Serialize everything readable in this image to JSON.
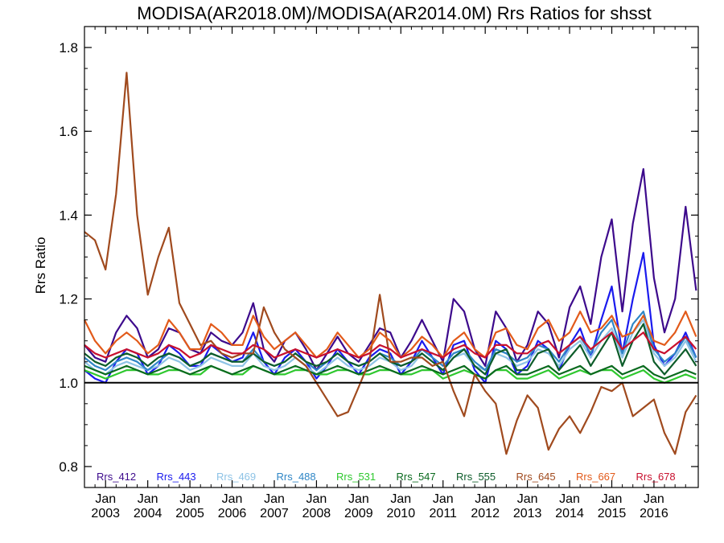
{
  "chart_data": {
    "type": "line",
    "title": "MODISA(AR2018.0M)/MODISA(AR2014.0M)  Rrs Ratios for shsst",
    "ylabel": "Rrs Ratio",
    "xlabel": "",
    "xlim": [
      2002.5,
      2017.05
    ],
    "ylim": [
      0.75,
      1.85
    ],
    "yticks": [
      0.8,
      1.0,
      1.2,
      1.4,
      1.6,
      1.8
    ],
    "ytick_labels": [
      "0.8",
      "1.0",
      "1.2",
      "1.4",
      "1.6",
      "1.8"
    ],
    "xticks": [
      {
        "x": 2003,
        "month": "Jan",
        "year": "2003"
      },
      {
        "x": 2004,
        "month": "Jan",
        "year": "2004"
      },
      {
        "x": 2005,
        "month": "Jan",
        "year": "2005"
      },
      {
        "x": 2006,
        "month": "Jan",
        "year": "2006"
      },
      {
        "x": 2007,
        "month": "Jan",
        "year": "2007"
      },
      {
        "x": 2008,
        "month": "Jan",
        "year": "2008"
      },
      {
        "x": 2009,
        "month": "Jan",
        "year": "2009"
      },
      {
        "x": 2010,
        "month": "Jan",
        "year": "2010"
      },
      {
        "x": 2011,
        "month": "Jan",
        "year": "2011"
      },
      {
        "x": 2012,
        "month": "Jan",
        "year": "2012"
      },
      {
        "x": 2013,
        "month": "Jan",
        "year": "2013"
      },
      {
        "x": 2014,
        "month": "Jan",
        "year": "2014"
      },
      {
        "x": 2015,
        "month": "Jan",
        "year": "2015"
      },
      {
        "x": 2016,
        "month": "Jan",
        "year": "2016"
      }
    ],
    "reference_line": 1.0,
    "legend_position": "bottom",
    "x": [
      2002.5,
      2002.75,
      2003.0,
      2003.25,
      2003.5,
      2003.75,
      2004.0,
      2004.25,
      2004.5,
      2004.75,
      2005.0,
      2005.25,
      2005.5,
      2005.75,
      2006.0,
      2006.25,
      2006.5,
      2006.75,
      2007.0,
      2007.25,
      2007.5,
      2007.75,
      2008.0,
      2008.25,
      2008.5,
      2008.75,
      2009.0,
      2009.25,
      2009.5,
      2009.75,
      2010.0,
      2010.25,
      2010.5,
      2010.75,
      2011.0,
      2011.25,
      2011.5,
      2011.75,
      2012.0,
      2012.25,
      2012.5,
      2012.75,
      2013.0,
      2013.25,
      2013.5,
      2013.75,
      2014.0,
      2014.25,
      2014.5,
      2014.75,
      2015.0,
      2015.25,
      2015.5,
      2015.75,
      2016.0,
      2016.25,
      2016.5,
      2016.75,
      2017.0
    ],
    "series": [
      {
        "name": "Rrs_412",
        "color": "#3d0a8c",
        "values": [
          1.09,
          1.06,
          1.05,
          1.12,
          1.16,
          1.13,
          1.06,
          1.08,
          1.13,
          1.12,
          1.08,
          1.07,
          1.12,
          1.1,
          1.09,
          1.12,
          1.19,
          1.08,
          1.05,
          1.1,
          1.12,
          1.08,
          1.03,
          1.07,
          1.11,
          1.07,
          1.05,
          1.09,
          1.13,
          1.12,
          1.06,
          1.1,
          1.15,
          1.1,
          1.05,
          1.2,
          1.17,
          1.08,
          1.04,
          1.17,
          1.13,
          1.05,
          1.09,
          1.17,
          1.14,
          1.06,
          1.18,
          1.23,
          1.14,
          1.3,
          1.39,
          1.17,
          1.38,
          1.51,
          1.25,
          1.12,
          1.2,
          1.42,
          1.22
        ]
      },
      {
        "name": "Rrs_443",
        "color": "#1a1aee",
        "values": [
          1.03,
          1.01,
          1.0,
          1.05,
          1.08,
          1.07,
          1.02,
          1.04,
          1.09,
          1.07,
          1.04,
          1.04,
          1.09,
          1.07,
          1.05,
          1.06,
          1.12,
          1.05,
          1.02,
          1.06,
          1.08,
          1.05,
          1.01,
          1.04,
          1.08,
          1.05,
          1.02,
          1.06,
          1.08,
          1.07,
          1.02,
          1.05,
          1.1,
          1.06,
          1.02,
          1.09,
          1.1,
          1.03,
          1.0,
          1.1,
          1.08,
          1.02,
          1.04,
          1.1,
          1.08,
          1.03,
          1.09,
          1.13,
          1.06,
          1.15,
          1.23,
          1.07,
          1.2,
          1.31,
          1.09,
          1.04,
          1.07,
          1.12,
          1.06
        ]
      },
      {
        "name": "Rrs_469",
        "color": "#8ec3e6",
        "values": [
          1.05,
          1.03,
          1.02,
          1.04,
          1.05,
          1.04,
          1.03,
          1.04,
          1.06,
          1.05,
          1.03,
          1.04,
          1.06,
          1.05,
          1.04,
          1.04,
          1.07,
          1.04,
          1.03,
          1.04,
          1.06,
          1.04,
          1.02,
          1.04,
          1.06,
          1.04,
          1.03,
          1.04,
          1.06,
          1.05,
          1.03,
          1.04,
          1.07,
          1.05,
          1.03,
          1.06,
          1.07,
          1.04,
          1.03,
          1.07,
          1.06,
          1.04,
          1.05,
          1.08,
          1.07,
          1.04,
          1.08,
          1.1,
          1.06,
          1.1,
          1.13,
          1.06,
          1.12,
          1.15,
          1.07,
          1.04,
          1.06,
          1.1,
          1.05
        ]
      },
      {
        "name": "Rrs_488",
        "color": "#2f86c6",
        "values": [
          1.06,
          1.04,
          1.03,
          1.05,
          1.06,
          1.05,
          1.03,
          1.05,
          1.07,
          1.06,
          1.04,
          1.05,
          1.07,
          1.06,
          1.05,
          1.05,
          1.08,
          1.05,
          1.04,
          1.05,
          1.07,
          1.05,
          1.03,
          1.05,
          1.07,
          1.05,
          1.04,
          1.05,
          1.07,
          1.06,
          1.04,
          1.05,
          1.08,
          1.06,
          1.04,
          1.07,
          1.08,
          1.05,
          1.03,
          1.08,
          1.07,
          1.05,
          1.06,
          1.09,
          1.08,
          1.05,
          1.09,
          1.11,
          1.07,
          1.12,
          1.15,
          1.07,
          1.14,
          1.17,
          1.08,
          1.05,
          1.07,
          1.11,
          1.06
        ]
      },
      {
        "name": "Rrs_531",
        "color": "#2ec82e",
        "values": [
          1.03,
          1.02,
          1.01,
          1.02,
          1.03,
          1.03,
          1.02,
          1.02,
          1.03,
          1.03,
          1.02,
          1.02,
          1.04,
          1.03,
          1.02,
          1.02,
          1.04,
          1.03,
          1.02,
          1.02,
          1.03,
          1.03,
          1.02,
          1.02,
          1.03,
          1.03,
          1.02,
          1.02,
          1.03,
          1.03,
          1.02,
          1.02,
          1.03,
          1.03,
          1.01,
          1.02,
          1.03,
          1.02,
          1.01,
          1.03,
          1.03,
          1.01,
          1.01,
          1.02,
          1.03,
          1.01,
          1.02,
          1.03,
          1.02,
          1.03,
          1.03,
          1.01,
          1.02,
          1.03,
          1.01,
          1.0,
          1.01,
          1.02,
          1.01
        ]
      },
      {
        "name": "Rrs_547",
        "color": "#0a6a1e",
        "values": [
          1.04,
          1.03,
          1.02,
          1.03,
          1.04,
          1.03,
          1.02,
          1.03,
          1.04,
          1.03,
          1.02,
          1.03,
          1.04,
          1.03,
          1.02,
          1.03,
          1.04,
          1.03,
          1.02,
          1.03,
          1.04,
          1.03,
          1.02,
          1.03,
          1.04,
          1.03,
          1.02,
          1.03,
          1.04,
          1.03,
          1.02,
          1.03,
          1.04,
          1.03,
          1.02,
          1.03,
          1.04,
          1.02,
          1.01,
          1.03,
          1.04,
          1.02,
          1.02,
          1.03,
          1.04,
          1.02,
          1.03,
          1.04,
          1.02,
          1.03,
          1.04,
          1.02,
          1.03,
          1.04,
          1.02,
          1.01,
          1.02,
          1.03,
          1.02
        ]
      },
      {
        "name": "Rrs_555",
        "color": "#0d5c2a",
        "values": [
          1.07,
          1.05,
          1.04,
          1.06,
          1.07,
          1.06,
          1.04,
          1.06,
          1.07,
          1.06,
          1.04,
          1.05,
          1.07,
          1.06,
          1.05,
          1.05,
          1.07,
          1.05,
          1.04,
          1.05,
          1.07,
          1.05,
          1.04,
          1.05,
          1.07,
          1.05,
          1.04,
          1.05,
          1.07,
          1.05,
          1.04,
          1.05,
          1.07,
          1.05,
          1.03,
          1.06,
          1.08,
          1.04,
          1.02,
          1.07,
          1.08,
          1.03,
          1.03,
          1.07,
          1.08,
          1.03,
          1.06,
          1.09,
          1.04,
          1.08,
          1.12,
          1.04,
          1.1,
          1.14,
          1.05,
          1.02,
          1.05,
          1.08,
          1.04
        ]
      },
      {
        "name": "Rrs_645",
        "color": "#a04a1e",
        "values": [
          1.36,
          1.34,
          1.27,
          1.45,
          1.74,
          1.4,
          1.21,
          1.3,
          1.37,
          1.19,
          1.14,
          1.09,
          1.1,
          1.07,
          1.06,
          1.07,
          1.07,
          1.18,
          1.12,
          1.08,
          1.06,
          1.04,
          1.0,
          0.96,
          0.92,
          0.93,
          0.99,
          1.05,
          1.21,
          1.05,
          1.05,
          1.06,
          1.06,
          1.04,
          1.05,
          0.98,
          0.92,
          1.02,
          0.98,
          0.95,
          0.83,
          0.91,
          0.97,
          0.94,
          0.84,
          0.89,
          0.92,
          0.88,
          0.93,
          0.99,
          0.98,
          1.0,
          0.92,
          0.94,
          0.96,
          0.88,
          0.83,
          0.93,
          0.97
        ]
      },
      {
        "name": "Rrs_667",
        "color": "#e25a1a",
        "values": [
          1.15,
          1.1,
          1.07,
          1.1,
          1.12,
          1.1,
          1.07,
          1.09,
          1.15,
          1.12,
          1.08,
          1.08,
          1.14,
          1.12,
          1.09,
          1.09,
          1.16,
          1.11,
          1.08,
          1.1,
          1.12,
          1.09,
          1.06,
          1.08,
          1.12,
          1.09,
          1.06,
          1.08,
          1.12,
          1.1,
          1.06,
          1.08,
          1.11,
          1.09,
          1.06,
          1.1,
          1.12,
          1.08,
          1.06,
          1.12,
          1.13,
          1.09,
          1.08,
          1.13,
          1.15,
          1.1,
          1.12,
          1.17,
          1.12,
          1.13,
          1.16,
          1.11,
          1.12,
          1.16,
          1.1,
          1.09,
          1.12,
          1.17,
          1.11
        ]
      },
      {
        "name": "Rrs_678",
        "color": "#c8102e",
        "values": [
          1.09,
          1.07,
          1.06,
          1.07,
          1.08,
          1.07,
          1.06,
          1.07,
          1.09,
          1.08,
          1.06,
          1.07,
          1.09,
          1.08,
          1.07,
          1.07,
          1.09,
          1.08,
          1.06,
          1.07,
          1.08,
          1.07,
          1.06,
          1.07,
          1.08,
          1.07,
          1.06,
          1.07,
          1.09,
          1.08,
          1.06,
          1.07,
          1.08,
          1.07,
          1.06,
          1.08,
          1.09,
          1.07,
          1.06,
          1.09,
          1.09,
          1.07,
          1.07,
          1.09,
          1.1,
          1.07,
          1.09,
          1.11,
          1.08,
          1.1,
          1.12,
          1.08,
          1.1,
          1.12,
          1.08,
          1.07,
          1.09,
          1.11,
          1.08
        ]
      }
    ]
  }
}
